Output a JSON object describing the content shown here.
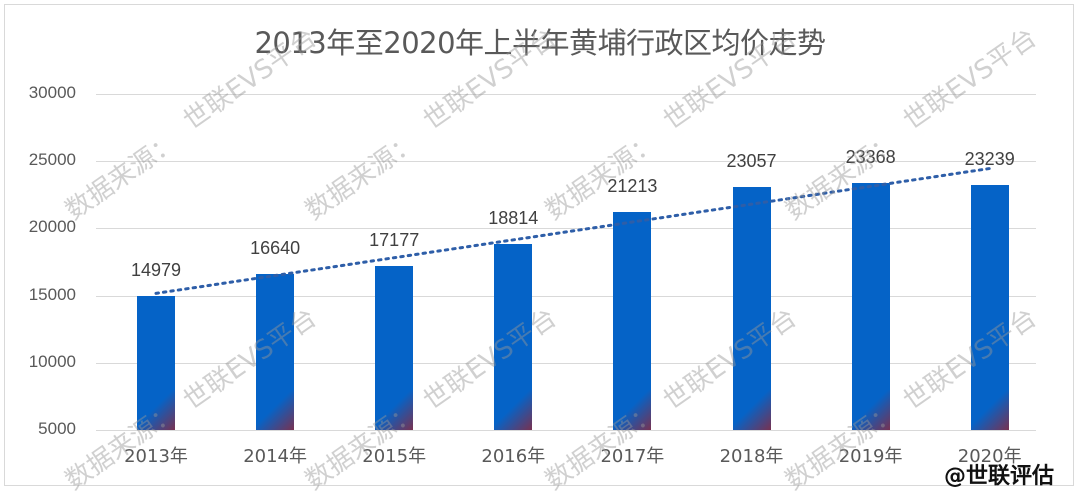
{
  "chart_data": {
    "type": "bar",
    "title": "2013年至2020年上半年黄埔行政区均价走势",
    "categories": [
      "2013年",
      "2014年",
      "2015年",
      "2016年",
      "2017年",
      "2018年",
      "2019年",
      "2020年"
    ],
    "values": [
      14979,
      16640,
      17177,
      18814,
      21213,
      23057,
      23368,
      23239
    ],
    "xlabel": "",
    "ylabel": "",
    "ylim": [
      5000,
      30000
    ],
    "yticks": [
      "30000",
      "25000",
      "20000",
      "15000",
      "10000",
      "5000"
    ],
    "grid": true,
    "trendline": {
      "type": "linear",
      "style": "dotted",
      "color": "#2e5ea8"
    },
    "bar_color": "#0563c7",
    "data_labels": [
      "14979",
      "16640",
      "17177",
      "18814",
      "21213",
      "23057",
      "23368",
      "23239"
    ]
  },
  "watermarks": {
    "source": "数据来源：",
    "platform": "世联EVS平台"
  },
  "brand": "@世联评估"
}
